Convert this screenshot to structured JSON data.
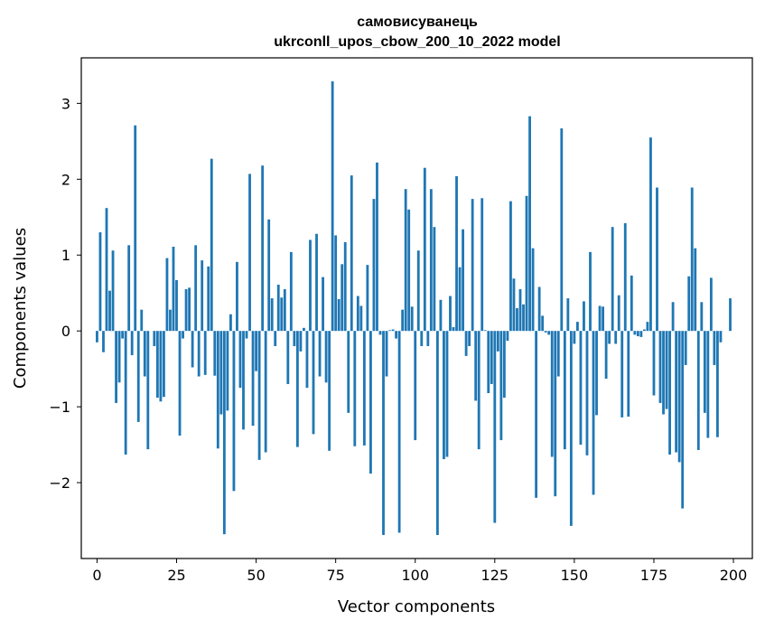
{
  "chart_data": {
    "type": "bar",
    "title": "самовисуванець",
    "subtitle": "ukrconll_upos_cbow_200_10_2022 model",
    "xlabel": "Vector components",
    "ylabel": "Components values",
    "xlim": [
      -4.95,
      205.95
    ],
    "ylim": [
      -3.0,
      3.6
    ],
    "xticks": [
      0,
      25,
      50,
      75,
      100,
      125,
      150,
      175,
      200
    ],
    "xtick_labels": [
      "0",
      "25",
      "50",
      "75",
      "100",
      "125",
      "150",
      "175",
      "200"
    ],
    "yticks": [
      -2,
      -1,
      0,
      1,
      2,
      3
    ],
    "ytick_labels": [
      "−2",
      "−1",
      "0",
      "1",
      "2",
      "3"
    ],
    "grid": false,
    "bar_color": "#1f77b4",
    "values": [
      -0.15,
      1.3,
      -0.28,
      1.62,
      0.53,
      1.06,
      -0.95,
      -0.68,
      -0.1,
      -1.63,
      1.13,
      -0.32,
      2.71,
      -1.2,
      0.28,
      -0.6,
      -1.56,
      0.0,
      -0.2,
      -0.88,
      -0.93,
      -0.87,
      0.96,
      0.28,
      1.11,
      0.67,
      -1.38,
      -0.1,
      0.55,
      0.57,
      -0.48,
      1.13,
      -0.6,
      0.93,
      -0.58,
      0.85,
      2.27,
      -0.59,
      -1.55,
      -1.1,
      -2.68,
      -1.05,
      0.22,
      -2.11,
      0.91,
      -0.75,
      -1.3,
      -0.1,
      2.07,
      -1.25,
      -0.53,
      -1.7,
      2.18,
      -1.6,
      1.47,
      0.43,
      -0.2,
      0.61,
      0.44,
      0.55,
      -0.7,
      1.04,
      -0.2,
      -1.53,
      -0.27,
      0.04,
      -0.75,
      1.2,
      -1.36,
      1.28,
      -0.6,
      0.71,
      -0.68,
      -1.58,
      3.29,
      1.26,
      0.42,
      0.88,
      1.17,
      -1.08,
      2.05,
      -1.52,
      0.46,
      0.33,
      -1.51,
      0.87,
      -1.88,
      1.74,
      2.22,
      -0.05,
      -2.69,
      -0.6,
      0.01,
      0.02,
      -0.1,
      -2.66,
      0.28,
      1.87,
      1.6,
      0.32,
      -1.44,
      1.06,
      -0.2,
      2.15,
      -0.2,
      1.87,
      1.37,
      -2.69,
      0.41,
      -1.69,
      -1.66,
      0.46,
      0.05,
      2.04,
      0.84,
      1.34,
      -0.33,
      -0.2,
      1.74,
      -0.92,
      -1.56,
      1.75,
      0.01,
      -0.82,
      -0.7,
      -2.53,
      -0.27,
      -1.44,
      -0.88,
      -0.13,
      1.71,
      0.69,
      0.3,
      0.55,
      0.35,
      1.78,
      2.83,
      1.09,
      -2.2,
      0.58,
      0.2,
      -0.02,
      -0.05,
      -1.66,
      -2.18,
      -0.6,
      2.67,
      -1.56,
      0.43,
      -2.57,
      -0.17,
      0.12,
      -1.5,
      0.39,
      -1.64,
      1.04,
      -2.16,
      -1.11,
      0.33,
      0.32,
      -0.63,
      -0.17,
      1.37,
      -0.17,
      0.47,
      -1.14,
      1.42,
      -1.13,
      0.73,
      -0.05,
      -0.07,
      -0.08,
      0.02,
      0.12,
      2.55,
      -0.85,
      1.89,
      -0.95,
      -1.1,
      -1.03,
      -1.63,
      0.38,
      -1.6,
      -1.73,
      -2.34,
      -0.45,
      0.72,
      1.89,
      1.09,
      -1.57,
      0.38,
      -1.08,
      -1.41,
      0.7,
      -0.45,
      -1.4,
      -0.15,
      0.0,
      0.0,
      0.43
    ]
  }
}
